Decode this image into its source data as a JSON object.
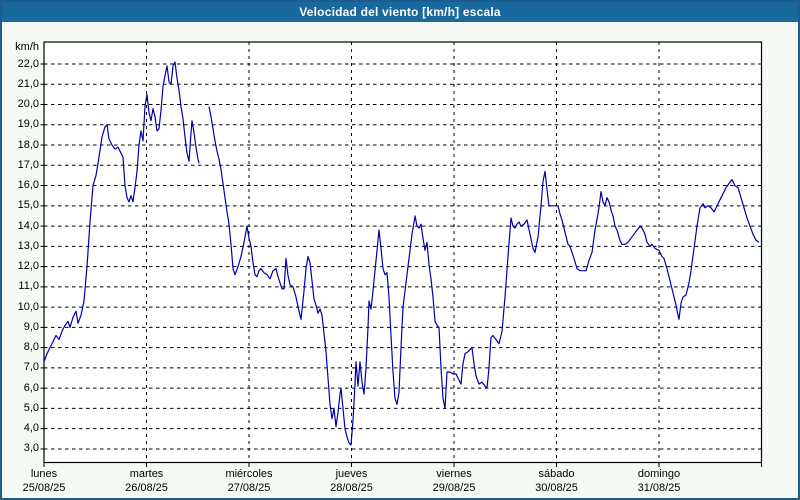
{
  "window": {
    "title": "Velocidad del viento [km/h] escala"
  },
  "chart_data": {
    "type": "line",
    "title": "Velocidad del viento [km/h] escala",
    "xlabel": "",
    "ylabel": "km/h",
    "ylim": [
      3,
      22
    ],
    "y_tick_step": 1,
    "y_ticks": [
      "22,0",
      "21,0",
      "20,0",
      "19,0",
      "18,0",
      "17,0",
      "16,0",
      "15,0",
      "14,0",
      "13,0",
      "12,0",
      "11,0",
      "10,0",
      "9,0",
      "8,0",
      "7,0",
      "6,0",
      "5,0",
      "4,0",
      "3,0"
    ],
    "x_range_days": 7,
    "grid": "dashed",
    "legend": "none",
    "line_color": "#0000aa",
    "days": [
      {
        "name": "lunes",
        "date": "25/08/25"
      },
      {
        "name": "martes",
        "date": "26/08/25"
      },
      {
        "name": "miércoles",
        "date": "27/08/25"
      },
      {
        "name": "jueves",
        "date": "28/08/25"
      },
      {
        "name": "viernes",
        "date": "29/08/25"
      },
      {
        "name": "sábado",
        "date": "30/08/25"
      },
      {
        "name": "domingo",
        "date": "31/08/25"
      }
    ],
    "series": [
      {
        "name": "Velocidad del viento [km/h]",
        "points": [
          [
            0.0,
            7.3
          ],
          [
            0.029,
            7.7
          ],
          [
            0.059,
            8.0
          ],
          [
            0.088,
            8.3
          ],
          [
            0.117,
            8.6
          ],
          [
            0.146,
            8.4
          ],
          [
            0.176,
            8.8
          ],
          [
            0.205,
            9.1
          ],
          [
            0.234,
            9.3
          ],
          [
            0.254,
            9.0
          ],
          [
            0.283,
            9.5
          ],
          [
            0.312,
            9.8
          ],
          [
            0.332,
            9.2
          ],
          [
            0.361,
            9.6
          ],
          [
            0.39,
            10.3
          ],
          [
            0.42,
            12.0
          ],
          [
            0.449,
            14.2
          ],
          [
            0.478,
            16.0
          ],
          [
            0.507,
            16.5
          ],
          [
            0.537,
            17.4
          ],
          [
            0.566,
            18.4
          ],
          [
            0.595,
            18.9
          ],
          [
            0.615,
            19.0
          ],
          [
            0.634,
            18.3
          ],
          [
            0.663,
            18.0
          ],
          [
            0.693,
            17.8
          ],
          [
            0.722,
            17.9
          ],
          [
            0.751,
            17.6
          ],
          [
            0.771,
            17.4
          ],
          [
            0.79,
            16.0
          ],
          [
            0.81,
            15.4
          ],
          [
            0.829,
            15.2
          ],
          [
            0.849,
            15.5
          ],
          [
            0.868,
            15.2
          ],
          [
            0.888,
            15.9
          ],
          [
            0.907,
            16.7
          ],
          [
            0.927,
            18.0
          ],
          [
            0.946,
            18.7
          ],
          [
            0.966,
            18.2
          ],
          [
            0.985,
            19.9
          ],
          [
            1.005,
            20.5
          ],
          [
            1.024,
            19.6
          ],
          [
            1.044,
            19.2
          ],
          [
            1.063,
            19.8
          ],
          [
            1.083,
            19.4
          ],
          [
            1.102,
            18.7
          ],
          [
            1.122,
            18.8
          ],
          [
            1.141,
            19.7
          ],
          [
            1.161,
            20.9
          ],
          [
            1.18,
            21.4
          ],
          [
            1.2,
            21.9
          ],
          [
            1.22,
            21.1
          ],
          [
            1.239,
            21.0
          ],
          [
            1.259,
            21.9
          ],
          [
            1.278,
            22.1
          ],
          [
            1.298,
            21.3
          ],
          [
            1.317,
            20.7
          ],
          [
            1.337,
            19.9
          ],
          [
            1.356,
            19.3
          ],
          [
            1.376,
            18.4
          ],
          [
            1.395,
            17.6
          ],
          [
            1.415,
            17.2
          ],
          [
            1.434,
            18.6
          ],
          [
            1.444,
            19.2
          ],
          [
            1.463,
            18.6
          ],
          [
            1.483,
            17.9
          ],
          [
            1.502,
            17.3
          ],
          [
            1.512,
            17.1
          ],
          null,
          [
            1.61,
            19.9
          ],
          [
            1.629,
            19.4
          ],
          [
            1.649,
            18.8
          ],
          [
            1.668,
            18.2
          ],
          [
            1.688,
            17.7
          ],
          [
            1.707,
            17.3
          ],
          [
            1.727,
            16.8
          ],
          [
            1.746,
            16.1
          ],
          [
            1.766,
            15.4
          ],
          [
            1.785,
            14.7
          ],
          [
            1.805,
            14.1
          ],
          [
            1.824,
            13.1
          ],
          [
            1.844,
            11.9
          ],
          [
            1.863,
            11.6
          ],
          [
            1.893,
            12.0
          ],
          [
            1.922,
            12.5
          ],
          [
            1.951,
            13.2
          ],
          [
            1.98,
            14.0
          ],
          [
            2.0,
            13.4
          ],
          [
            2.02,
            13.0
          ],
          [
            2.039,
            12.2
          ],
          [
            2.059,
            11.6
          ],
          [
            2.078,
            11.5
          ],
          [
            2.098,
            11.8
          ],
          [
            2.117,
            11.9
          ],
          [
            2.146,
            11.7
          ],
          [
            2.176,
            11.6
          ],
          [
            2.205,
            11.4
          ],
          [
            2.234,
            11.8
          ],
          [
            2.263,
            11.9
          ],
          [
            2.283,
            11.5
          ],
          [
            2.302,
            11.2
          ],
          [
            2.322,
            10.9
          ],
          [
            2.341,
            10.9
          ],
          [
            2.361,
            12.4
          ],
          [
            2.38,
            11.6
          ],
          [
            2.4,
            11.1
          ],
          [
            2.429,
            11.0
          ],
          [
            2.459,
            10.5
          ],
          [
            2.488,
            9.8
          ],
          [
            2.507,
            9.4
          ],
          [
            2.537,
            10.8
          ],
          [
            2.556,
            11.9
          ],
          [
            2.576,
            12.5
          ],
          [
            2.595,
            12.2
          ],
          [
            2.615,
            11.3
          ],
          [
            2.634,
            10.4
          ],
          [
            2.654,
            10.1
          ],
          [
            2.673,
            9.7
          ],
          [
            2.693,
            9.9
          ],
          [
            2.712,
            9.6
          ],
          [
            2.732,
            8.7
          ],
          [
            2.751,
            7.8
          ],
          [
            2.771,
            6.5
          ],
          [
            2.79,
            5.2
          ],
          [
            2.81,
            4.5
          ],
          [
            2.829,
            5.0
          ],
          [
            2.849,
            4.1
          ],
          [
            2.868,
            4.8
          ],
          [
            2.888,
            5.7
          ],
          [
            2.898,
            6.0
          ],
          [
            2.917,
            5.0
          ],
          [
            2.937,
            4.0
          ],
          [
            2.956,
            3.6
          ],
          [
            2.976,
            3.3
          ],
          [
            2.995,
            3.2
          ],
          [
            3.015,
            4.4
          ],
          [
            3.034,
            6.2
          ],
          [
            3.044,
            7.3
          ],
          [
            3.063,
            6.1
          ],
          [
            3.083,
            7.3
          ],
          [
            3.102,
            6.3
          ],
          [
            3.122,
            5.7
          ],
          [
            3.141,
            7.0
          ],
          [
            3.161,
            9.0
          ],
          [
            3.171,
            10.3
          ],
          [
            3.19,
            9.9
          ],
          [
            3.21,
            10.8
          ],
          [
            3.229,
            11.8
          ],
          [
            3.249,
            12.8
          ],
          [
            3.268,
            13.8
          ],
          [
            3.288,
            12.9
          ],
          [
            3.307,
            11.9
          ],
          [
            3.327,
            11.6
          ],
          [
            3.346,
            11.7
          ],
          [
            3.366,
            10.5
          ],
          [
            3.385,
            8.6
          ],
          [
            3.405,
            6.8
          ],
          [
            3.424,
            5.5
          ],
          [
            3.444,
            5.2
          ],
          [
            3.463,
            5.8
          ],
          [
            3.483,
            8.0
          ],
          [
            3.502,
            10.0
          ],
          [
            3.532,
            11.2
          ],
          [
            3.561,
            12.4
          ],
          [
            3.59,
            13.6
          ],
          [
            3.62,
            14.5
          ],
          [
            3.639,
            14.0
          ],
          [
            3.659,
            13.9
          ],
          [
            3.678,
            14.1
          ],
          [
            3.698,
            13.4
          ],
          [
            3.717,
            12.8
          ],
          [
            3.737,
            13.2
          ],
          [
            3.756,
            12.1
          ],
          [
            3.776,
            11.4
          ],
          [
            3.795,
            10.5
          ],
          [
            3.815,
            9.3
          ],
          [
            3.834,
            9.1
          ],
          [
            3.854,
            9.0
          ],
          [
            3.873,
            7.0
          ],
          [
            3.893,
            5.5
          ],
          [
            3.912,
            5.0
          ],
          [
            3.932,
            6.8
          ],
          [
            3.961,
            6.8
          ],
          [
            3.99,
            6.7
          ],
          [
            4.02,
            6.7
          ],
          [
            4.049,
            6.4
          ],
          [
            4.068,
            6.2
          ],
          [
            4.088,
            7.2
          ],
          [
            4.107,
            7.7
          ],
          [
            4.137,
            7.8
          ],
          [
            4.156,
            7.9
          ],
          [
            4.176,
            8.0
          ],
          [
            4.195,
            7.2
          ],
          [
            4.215,
            6.6
          ],
          [
            4.244,
            6.2
          ],
          [
            4.273,
            6.3
          ],
          [
            4.302,
            6.1
          ],
          [
            4.322,
            6.0
          ],
          [
            4.341,
            7.0
          ],
          [
            4.361,
            8.5
          ],
          [
            4.38,
            8.6
          ],
          [
            4.41,
            8.4
          ],
          [
            4.439,
            8.2
          ],
          [
            4.468,
            8.8
          ],
          [
            4.498,
            10.5
          ],
          [
            4.527,
            12.5
          ],
          [
            4.556,
            14.4
          ],
          [
            4.576,
            14.0
          ],
          [
            4.595,
            13.9
          ],
          [
            4.615,
            14.1
          ],
          [
            4.634,
            14.2
          ],
          [
            4.654,
            14.0
          ],
          [
            4.683,
            14.1
          ],
          [
            4.712,
            14.3
          ],
          [
            4.741,
            13.6
          ],
          [
            4.771,
            12.9
          ],
          [
            4.79,
            12.7
          ],
          [
            4.82,
            13.5
          ],
          [
            4.849,
            15.0
          ],
          [
            4.868,
            16.2
          ],
          [
            4.888,
            16.7
          ],
          [
            4.907,
            15.8
          ],
          [
            4.927,
            15.0
          ],
          [
            4.956,
            15.0
          ],
          [
            4.985,
            15.0
          ],
          [
            5.015,
            15.0
          ],
          [
            5.034,
            14.6
          ],
          [
            5.054,
            14.3
          ],
          [
            5.083,
            13.7
          ],
          [
            5.112,
            13.1
          ],
          [
            5.132,
            13.0
          ],
          [
            5.151,
            12.7
          ],
          [
            5.171,
            12.4
          ],
          [
            5.2,
            11.9
          ],
          [
            5.229,
            11.8
          ],
          [
            5.259,
            11.8
          ],
          [
            5.288,
            11.8
          ],
          [
            5.317,
            12.3
          ],
          [
            5.346,
            12.7
          ],
          [
            5.376,
            13.8
          ],
          [
            5.405,
            14.6
          ],
          [
            5.424,
            15.3
          ],
          [
            5.434,
            15.7
          ],
          [
            5.454,
            15.2
          ],
          [
            5.473,
            15.0
          ],
          [
            5.493,
            15.4
          ],
          [
            5.512,
            15.2
          ],
          [
            5.532,
            14.8
          ],
          [
            5.551,
            14.5
          ],
          [
            5.571,
            14.0
          ],
          [
            5.59,
            13.8
          ],
          [
            5.62,
            13.3
          ],
          [
            5.639,
            13.1
          ],
          [
            5.668,
            13.1
          ],
          [
            5.698,
            13.2
          ],
          [
            5.727,
            13.4
          ],
          [
            5.756,
            13.6
          ],
          [
            5.785,
            13.8
          ],
          [
            5.815,
            14.0
          ],
          [
            5.834,
            13.9
          ],
          [
            5.863,
            13.6
          ],
          [
            5.883,
            13.2
          ],
          [
            5.912,
            13.0
          ],
          [
            5.932,
            13.1
          ],
          [
            5.961,
            12.9
          ],
          [
            6.0,
            12.8
          ],
          [
            6.029,
            12.5
          ],
          [
            6.049,
            12.4
          ],
          [
            6.078,
            11.9
          ],
          [
            6.107,
            11.3
          ],
          [
            6.137,
            10.7
          ],
          [
            6.166,
            10.1
          ],
          [
            6.185,
            9.6
          ],
          [
            6.195,
            9.4
          ],
          [
            6.215,
            10.2
          ],
          [
            6.234,
            10.5
          ],
          [
            6.263,
            10.6
          ],
          [
            6.293,
            11.2
          ],
          [
            6.312,
            11.8
          ],
          [
            6.341,
            12.9
          ],
          [
            6.371,
            14.0
          ],
          [
            6.4,
            14.9
          ],
          [
            6.429,
            15.1
          ],
          [
            6.449,
            14.9
          ],
          [
            6.478,
            15.0
          ],
          [
            6.507,
            14.9
          ],
          [
            6.537,
            14.7
          ],
          [
            6.566,
            15.0
          ],
          [
            6.595,
            15.3
          ],
          [
            6.624,
            15.6
          ],
          [
            6.654,
            15.9
          ],
          [
            6.683,
            16.1
          ],
          [
            6.712,
            16.3
          ],
          [
            6.741,
            16.0
          ],
          [
            6.771,
            15.9
          ],
          [
            6.8,
            15.4
          ],
          [
            6.829,
            14.9
          ],
          [
            6.859,
            14.4
          ],
          [
            6.888,
            14.0
          ],
          [
            6.917,
            13.6
          ],
          [
            6.946,
            13.3
          ],
          [
            6.976,
            13.2
          ]
        ]
      }
    ]
  },
  "colors": {
    "titlebar_bg": "#1a699e",
    "titlebar_text": "#ffffff",
    "window_bg": "#f6faf4",
    "window_border": "#1d5c8f",
    "plot_bg": "#ffffff",
    "grid": "#000000",
    "series_line": "#0000aa"
  }
}
